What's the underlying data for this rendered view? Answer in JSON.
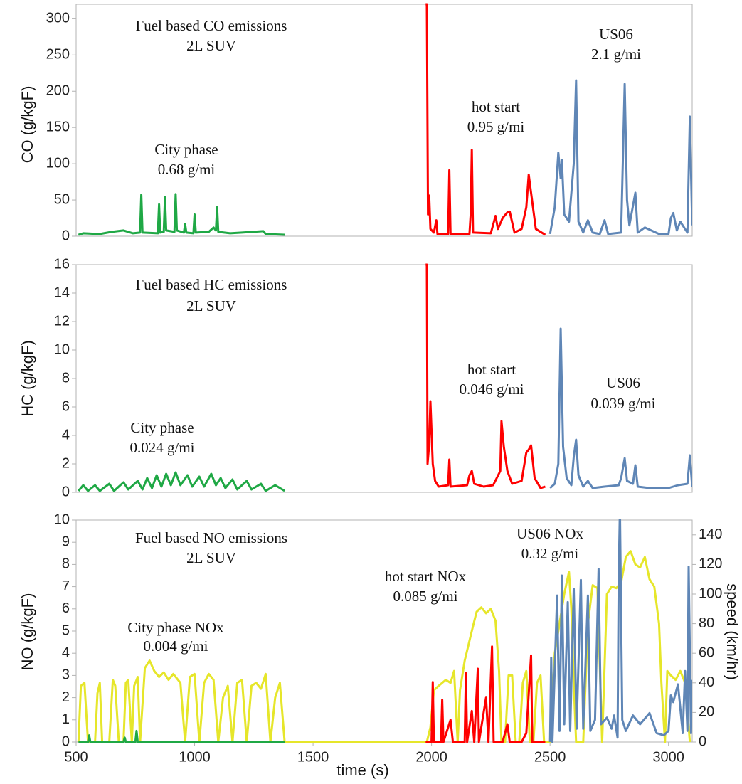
{
  "chart_data": [
    {
      "type": "line",
      "ylabel": "CO (g/kgF)",
      "annotations": [
        "Fuel based CO emissions",
        "2L SUV",
        "City phase",
        "0.68 g/mi",
        "hot start",
        "0.95 g/mi",
        "US06",
        "2.1 g/mi"
      ],
      "xlim": [
        500,
        3100
      ],
      "ylim": [
        0,
        320
      ],
      "yticks": [
        0,
        50,
        100,
        150,
        200,
        250,
        300
      ],
      "series": [
        {
          "color": "#1fa845",
          "x": [
            510,
            530,
            600,
            650,
            700,
            740,
            770,
            775,
            780,
            845,
            850,
            855,
            870,
            875,
            880,
            915,
            920,
            925,
            955,
            960,
            965,
            995,
            1000,
            1005,
            1060,
            1080,
            1090,
            1095,
            1100,
            1150,
            1200,
            1290,
            1300,
            1380
          ],
          "values": [
            2,
            4,
            3,
            6,
            8,
            4,
            5,
            57,
            5,
            4,
            44,
            5,
            6,
            54,
            8,
            6,
            58,
            8,
            5,
            17,
            5,
            4,
            30,
            5,
            6,
            12,
            8,
            40,
            6,
            4,
            5,
            7,
            3,
            2
          ]
        },
        {
          "color": "#ff0000",
          "x": [
            1975,
            1980,
            1985,
            1990,
            1995,
            2010,
            2020,
            2025,
            2070,
            2075,
            2080,
            2160,
            2165,
            2170,
            2175,
            2250,
            2270,
            2280,
            2300,
            2320,
            2330,
            2350,
            2380,
            2400,
            2410,
            2420,
            2440,
            2480
          ],
          "values": [
            320,
            320,
            30,
            56,
            10,
            5,
            22,
            3,
            3,
            91,
            3,
            3,
            30,
            119,
            5,
            4,
            28,
            10,
            25,
            33,
            34,
            5,
            10,
            40,
            85,
            60,
            10,
            2
          ]
        },
        {
          "color": "#5f86b6",
          "x": [
            2500,
            2520,
            2535,
            2545,
            2550,
            2560,
            2580,
            2600,
            2610,
            2620,
            2640,
            2660,
            2680,
            2710,
            2730,
            2745,
            2800,
            2815,
            2825,
            2835,
            2860,
            2870,
            2900,
            2960,
            3000,
            3010,
            3020,
            3035,
            3050,
            3080,
            3090,
            3100
          ],
          "values": [
            3,
            40,
            115,
            80,
            105,
            30,
            20,
            100,
            215,
            20,
            5,
            22,
            5,
            3,
            22,
            3,
            5,
            210,
            50,
            15,
            60,
            5,
            12,
            3,
            3,
            25,
            32,
            8,
            20,
            5,
            165,
            15
          ]
        }
      ]
    },
    {
      "type": "line",
      "ylabel": "HC (g/kgF)",
      "annotations": [
        "Fuel based HC emissions",
        "2L SUV",
        "City phase",
        "0.024 g/mi",
        "hot start",
        "0.046 g/mi",
        "US06",
        "0.039 g/mi"
      ],
      "xlim": [
        500,
        3100
      ],
      "ylim": [
        0,
        16
      ],
      "yticks": [
        0,
        2,
        4,
        6,
        8,
        10,
        12,
        14,
        16
      ],
      "series": [
        {
          "color": "#1fa845",
          "x": [
            510,
            530,
            550,
            580,
            600,
            640,
            660,
            700,
            720,
            760,
            780,
            800,
            820,
            840,
            860,
            880,
            900,
            920,
            940,
            970,
            990,
            1020,
            1040,
            1070,
            1090,
            1110,
            1130,
            1160,
            1180,
            1220,
            1240,
            1280,
            1300,
            1340,
            1380
          ],
          "values": [
            0.1,
            0.5,
            0.1,
            0.5,
            0.1,
            0.6,
            0.1,
            0.7,
            0.2,
            0.8,
            0.2,
            1.0,
            0.3,
            1.2,
            0.4,
            1.3,
            0.5,
            1.4,
            0.5,
            1.2,
            0.4,
            1.1,
            0.4,
            1.3,
            0.5,
            1.0,
            0.3,
            0.9,
            0.2,
            0.8,
            0.2,
            0.6,
            0.1,
            0.5,
            0.1
          ]
        },
        {
          "color": "#ff0000",
          "x": [
            1975,
            1980,
            1983,
            1990,
            1995,
            2005,
            2015,
            2030,
            2070,
            2075,
            2080,
            2150,
            2160,
            2170,
            2180,
            2220,
            2260,
            2290,
            2295,
            2305,
            2320,
            2340,
            2380,
            2400,
            2410,
            2420,
            2435,
            2460,
            2480
          ],
          "values": [
            16,
            16,
            2,
            3.4,
            6.4,
            2,
            0.8,
            0.4,
            0.5,
            2.3,
            0.4,
            0.5,
            1.2,
            1.5,
            0.6,
            0.4,
            0.5,
            1.5,
            5.0,
            3.2,
            1.5,
            0.6,
            0.8,
            2.8,
            3.0,
            3.3,
            1.0,
            0.3,
            0.4
          ]
        },
        {
          "color": "#5f86b6",
          "x": [
            2500,
            2520,
            2535,
            2545,
            2555,
            2570,
            2590,
            2600,
            2610,
            2620,
            2640,
            2660,
            2680,
            2730,
            2790,
            2800,
            2815,
            2825,
            2850,
            2860,
            2870,
            2920,
            3000,
            3040,
            3080,
            3090,
            3100
          ],
          "values": [
            0.3,
            0.6,
            2.0,
            11.5,
            3.2,
            1.0,
            0.5,
            2.5,
            3.7,
            1.2,
            0.4,
            0.8,
            0.3,
            0.4,
            0.5,
            1.0,
            2.4,
            0.8,
            0.6,
            1.9,
            0.4,
            0.3,
            0.3,
            0.5,
            0.6,
            2.6,
            0.4
          ]
        }
      ]
    },
    {
      "type": "line",
      "ylabel": "NO (g/kgF)",
      "y2label": "speed (km/hr)",
      "xlabel": "time (s)",
      "annotations": [
        "Fuel based NO emissions",
        "2L SUV",
        "City phase NOx",
        "0.004 g/mi",
        "hot start NOx",
        "0.085 g/mi",
        "US06 NOx",
        "0.32 g/mi"
      ],
      "xlim": [
        500,
        3100
      ],
      "xticks": [
        500,
        1000,
        1500,
        2000,
        2500,
        3000
      ],
      "ylim": [
        0,
        10
      ],
      "yticks": [
        0,
        1,
        2,
        3,
        4,
        5,
        6,
        7,
        8,
        9,
        10
      ],
      "y2lim": [
        0,
        150
      ],
      "y2ticks": [
        0,
        20,
        40,
        60,
        80,
        100,
        120,
        140
      ],
      "series": [
        {
          "color": "#e6e62a",
          "axis": "y2",
          "x": [
            510,
            520,
            535,
            550,
            580,
            590,
            600,
            610,
            640,
            655,
            665,
            680,
            700,
            710,
            720,
            735,
            745,
            760,
            770,
            790,
            810,
            830,
            850,
            870,
            890,
            910,
            940,
            960,
            980,
            1000,
            1020,
            1040,
            1060,
            1080,
            1100,
            1120,
            1140,
            1160,
            1180,
            1200,
            1220,
            1240,
            1260,
            1280,
            1300,
            1320,
            1340,
            1360,
            1380,
            1980,
            1995,
            2010,
            2030,
            2060,
            2080,
            2095,
            2110,
            2120,
            2140,
            2170,
            2190,
            2210,
            2230,
            2250,
            2270,
            2285,
            2295,
            2310,
            2325,
            2340,
            2355,
            2370,
            2385,
            2400,
            2415,
            2430,
            2445,
            2460,
            2475,
            2500,
            2520,
            2540,
            2560,
            2580,
            2590,
            2600,
            2610,
            2640,
            2660,
            2680,
            2700,
            2720,
            2740,
            2760,
            2780,
            2800,
            2820,
            2840,
            2860,
            2880,
            2900,
            2920,
            2940,
            2960,
            2970,
            2985,
            2995,
            3010,
            3030,
            3050,
            3070,
            3090
          ],
          "values": [
            0,
            38,
            40,
            0,
            0,
            33,
            40,
            0,
            0,
            42,
            38,
            0,
            0,
            40,
            42,
            0,
            38,
            44,
            0,
            50,
            55,
            48,
            44,
            47,
            42,
            46,
            40,
            0,
            44,
            46,
            0,
            40,
            46,
            42,
            0,
            30,
            38,
            0,
            40,
            42,
            0,
            38,
            40,
            36,
            46,
            0,
            30,
            40,
            0,
            0,
            10,
            35,
            38,
            42,
            40,
            48,
            0,
            35,
            55,
            75,
            88,
            91,
            87,
            90,
            82,
            48,
            0,
            0,
            45,
            45,
            0,
            0,
            40,
            48,
            0,
            0,
            40,
            45,
            0,
            0,
            60,
            80,
            100,
            115,
            90,
            40,
            0,
            0,
            80,
            106,
            104,
            0,
            100,
            105,
            104,
            108,
            125,
            129,
            120,
            118,
            125,
            110,
            105,
            80,
            40,
            0,
            48,
            45,
            42,
            48,
            40,
            0
          ]
        },
        {
          "color": "#1fa845",
          "x": [
            510,
            550,
            555,
            560,
            700,
            705,
            710,
            750,
            755,
            760,
            1380
          ],
          "values": [
            0,
            0,
            0.3,
            0,
            0,
            0.2,
            0,
            0,
            0.5,
            0,
            0
          ]
        },
        {
          "color": "#ff0000",
          "x": [
            1975,
            2000,
            2005,
            2010,
            2040,
            2045,
            2050,
            2080,
            2090,
            2140,
            2145,
            2150,
            2170,
            2180,
            2195,
            2200,
            2230,
            2240,
            2255,
            2262,
            2300,
            2320,
            2330,
            2380,
            2400,
            2420,
            2425,
            2480
          ],
          "values": [
            0,
            0,
            2.7,
            0,
            0,
            1.9,
            0,
            1.0,
            0,
            0,
            3.1,
            0,
            1.4,
            0,
            3.3,
            0,
            2.0,
            0,
            4.3,
            0,
            0,
            0.8,
            0,
            0,
            0.4,
            3.9,
            0,
            0
          ]
        },
        {
          "color": "#5f86b6",
          "x": [
            2500,
            2505,
            2510,
            2530,
            2540,
            2550,
            2560,
            2575,
            2585,
            2600,
            2612,
            2630,
            2640,
            2660,
            2670,
            2690,
            2705,
            2715,
            2740,
            2760,
            2770,
            2785,
            2790,
            2795,
            2805,
            2820,
            2850,
            2880,
            2920,
            2950,
            2980,
            3000,
            3010,
            3020,
            3040,
            3060,
            3070,
            3080,
            3085,
            3095,
            3100
          ],
          "values": [
            0,
            3.8,
            0,
            6.6,
            0.5,
            7.5,
            0.8,
            6.3,
            0.5,
            6.9,
            0.6,
            7.3,
            0.6,
            6.6,
            0.5,
            1.0,
            7.8,
            0.8,
            1.1,
            0.6,
            1.2,
            0.2,
            7.5,
            10.5,
            1.0,
            0.5,
            1.2,
            0.8,
            1.3,
            0.4,
            0.3,
            0.5,
            2.1,
            1.8,
            2.6,
            0.4,
            3.2,
            0.5,
            7.9,
            0.4,
            2.8
          ]
        }
      ]
    }
  ]
}
